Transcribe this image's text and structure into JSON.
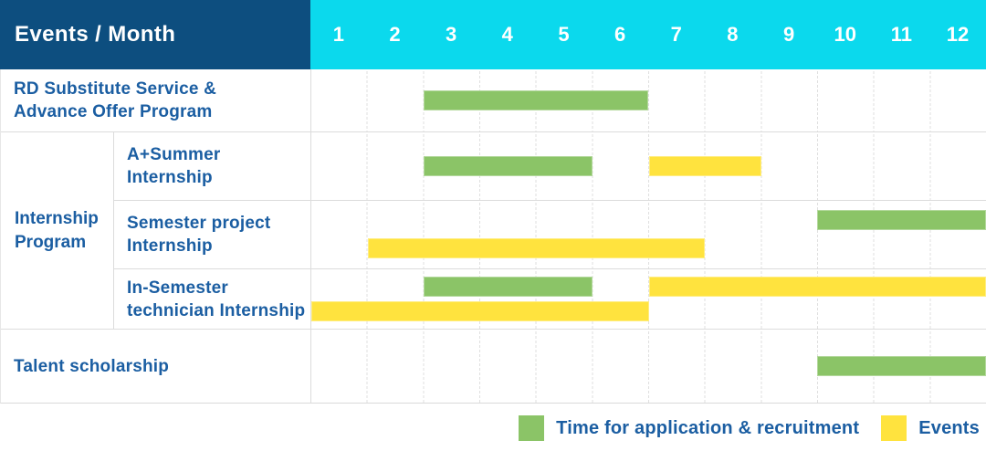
{
  "header": {
    "title": "Events / Month",
    "months": [
      "1",
      "2",
      "3",
      "4",
      "5",
      "6",
      "7",
      "8",
      "9",
      "10",
      "11",
      "12"
    ]
  },
  "rows": {
    "rd": {
      "label_lines": [
        "RD Substitute Service &",
        "Advance Offer Program"
      ]
    },
    "group": {
      "label_lines": [
        "Internship",
        "Program"
      ]
    },
    "aplus": {
      "label_lines": [
        "A+Summer",
        "Internship"
      ]
    },
    "semester": {
      "label_lines": [
        "Semester project",
        "Internship"
      ]
    },
    "insem": {
      "label_lines": [
        "In-Semester",
        "technician Internship"
      ]
    },
    "talent": {
      "label_lines": [
        "Talent scholarship"
      ]
    }
  },
  "legend": {
    "items": [
      {
        "label": "Time for application & recruitment",
        "color": "#8BC467",
        "series": "green"
      },
      {
        "label": "Events",
        "color": "#FFE33E",
        "series": "yellow"
      }
    ]
  },
  "colors": {
    "navy": "#0D4E7F",
    "cyan": "#0BD9ED",
    "green": "#8BC467",
    "yellow": "#FFE33E",
    "label_blue": "#1B5EA2"
  },
  "chart_data": {
    "type": "gantt",
    "x_unit": "month",
    "x_range": [
      1,
      12
    ],
    "series": {
      "green": "Time for application & recruitment",
      "yellow": "Events"
    },
    "rows": [
      {
        "id": "rd",
        "task": "RD Substitute Service & Advance Offer Program",
        "group": null,
        "lanes": 1,
        "bars": [
          {
            "series": "green",
            "lane": 0,
            "start_month": 3,
            "end_month": 6
          }
        ]
      },
      {
        "id": "aplus",
        "task": "A+Summer Internship",
        "group": "Internship Program",
        "lanes": 1,
        "bars": [
          {
            "series": "green",
            "lane": 0,
            "start_month": 3,
            "end_month": 5
          },
          {
            "series": "yellow",
            "lane": 0,
            "start_month": 7,
            "end_month": 8
          }
        ]
      },
      {
        "id": "semester",
        "task": "Semester project Internship",
        "group": "Internship Program",
        "lanes": 2,
        "bars": [
          {
            "series": "green",
            "lane": 0,
            "start_month": 10,
            "end_month": 12
          },
          {
            "series": "yellow",
            "lane": 1,
            "start_month": 2,
            "end_month": 7
          }
        ]
      },
      {
        "id": "insem",
        "task": "In-Semester technician Internship",
        "group": "Internship Program",
        "lanes": 2,
        "bars": [
          {
            "series": "green",
            "lane": 0,
            "start_month": 3,
            "end_month": 5
          },
          {
            "series": "yellow",
            "lane": 0,
            "start_month": 7,
            "end_month": 12
          },
          {
            "series": "yellow",
            "lane": 1,
            "start_month": 1,
            "end_month": 6
          }
        ]
      },
      {
        "id": "talent",
        "task": "Talent scholarship",
        "group": null,
        "lanes": 1,
        "bars": [
          {
            "series": "green",
            "lane": 0,
            "start_month": 10,
            "end_month": 12
          }
        ]
      }
    ]
  }
}
